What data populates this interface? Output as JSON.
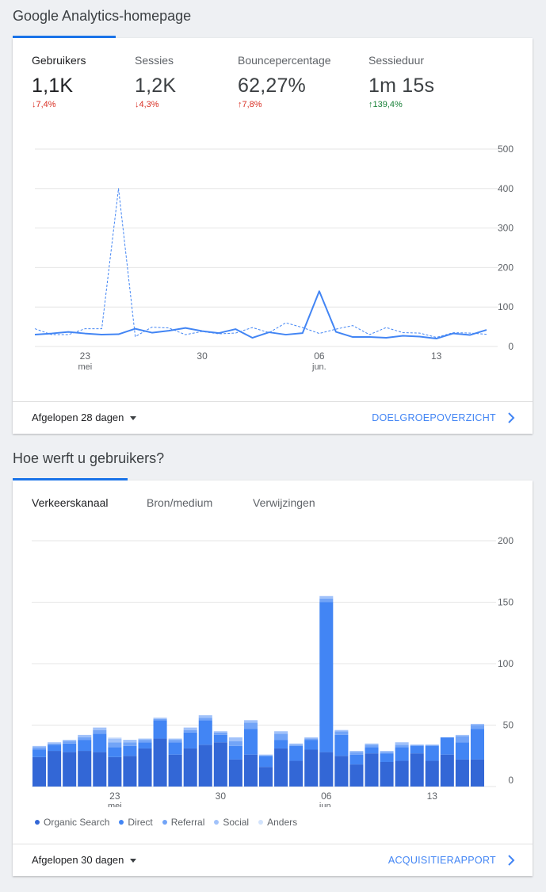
{
  "overview": {
    "title": "Google Analytics-homepage",
    "metrics": [
      {
        "label": "Gebruikers",
        "value": "1,1K",
        "delta": "7,4%",
        "direction": "down"
      },
      {
        "label": "Sessies",
        "value": "1,2K",
        "delta": "4,3%",
        "direction": "down"
      },
      {
        "label": "Bouncepercentage",
        "value": "62,27%",
        "delta": "7,8%",
        "direction": "up"
      },
      {
        "label": "Sessieduur",
        "value": "1m 15s",
        "delta": "139,4%",
        "direction": "up"
      }
    ],
    "footer": {
      "range": "Afgelopen 28 dagen",
      "link": "DOELGROEPOVERZICHT"
    }
  },
  "acquisition": {
    "title": "Hoe werft u gebruikers?",
    "tabs": [
      "Verkeerskanaal",
      "Bron/medium",
      "Verwijzingen"
    ],
    "legend": [
      {
        "name": "Organic Search",
        "color": "#3367d6"
      },
      {
        "name": "Direct",
        "color": "#4285f4"
      },
      {
        "name": "Referral",
        "color": "#72a4f7"
      },
      {
        "name": "Social",
        "color": "#a1c2fa"
      },
      {
        "name": "Anders",
        "color": "#d2e3fc"
      }
    ],
    "footer": {
      "range": "Afgelopen 30 dagen",
      "link": "ACQUISITIERAPPORT"
    }
  },
  "chart_data": [
    {
      "type": "line",
      "x": [
        "2021-05-20",
        "2021-05-21",
        "2021-05-22",
        "2021-05-23",
        "2021-05-24",
        "2021-05-25",
        "2021-05-26",
        "2021-05-27",
        "2021-05-28",
        "2021-05-29",
        "2021-05-30",
        "2021-05-31",
        "2021-06-01",
        "2021-06-02",
        "2021-06-03",
        "2021-06-04",
        "2021-06-05",
        "2021-06-06",
        "2021-06-07",
        "2021-06-08",
        "2021-06-09",
        "2021-06-10",
        "2021-06-11",
        "2021-06-12",
        "2021-06-13",
        "2021-06-14",
        "2021-06-15",
        "2021-06-16"
      ],
      "x_tick_labels": [
        {
          "date": "2021-05-23",
          "label": "23",
          "sub": "mei"
        },
        {
          "date": "2021-05-30",
          "label": "30",
          "sub": ""
        },
        {
          "date": "2021-06-06",
          "label": "06",
          "sub": "jun."
        },
        {
          "date": "2021-06-13",
          "label": "13",
          "sub": ""
        }
      ],
      "series": [
        {
          "values": [
            30,
            33,
            37,
            33,
            30,
            31,
            45,
            35,
            40,
            47,
            39,
            34,
            44,
            22,
            36,
            30,
            34,
            140,
            37,
            24,
            24,
            22,
            27,
            25,
            20,
            33,
            29,
            42
          ],
          "style": "solid"
        },
        {
          "values": [
            45,
            30,
            30,
            45,
            45,
            400,
            25,
            49,
            47,
            30,
            38,
            32,
            34,
            48,
            35,
            60,
            48,
            33,
            44,
            53,
            30,
            48,
            35,
            34,
            23,
            35,
            34,
            31
          ],
          "style": "dashed"
        }
      ],
      "y_ticks": [
        0,
        100,
        200,
        300,
        400,
        500
      ],
      "ylim": [
        0,
        500
      ]
    },
    {
      "type": "bar",
      "stacked": true,
      "x": [
        "2021-05-18",
        "2021-05-19",
        "2021-05-20",
        "2021-05-21",
        "2021-05-22",
        "2021-05-23",
        "2021-05-24",
        "2021-05-25",
        "2021-05-26",
        "2021-05-27",
        "2021-05-28",
        "2021-05-29",
        "2021-05-30",
        "2021-05-31",
        "2021-06-01",
        "2021-06-02",
        "2021-06-03",
        "2021-06-04",
        "2021-06-05",
        "2021-06-06",
        "2021-06-07",
        "2021-06-08",
        "2021-06-09",
        "2021-06-10",
        "2021-06-11",
        "2021-06-12",
        "2021-06-13",
        "2021-06-14",
        "2021-06-15",
        "2021-06-16"
      ],
      "x_tick_labels": [
        {
          "date": "2021-05-23",
          "label": "23",
          "sub": "mei"
        },
        {
          "date": "2021-05-30",
          "label": "30",
          "sub": ""
        },
        {
          "date": "2021-06-06",
          "label": "06",
          "sub": "jun."
        },
        {
          "date": "2021-06-13",
          "label": "13",
          "sub": ""
        }
      ],
      "series": [
        {
          "name": "Organic Search",
          "values": [
            24,
            29,
            28,
            29,
            28,
            24,
            25,
            31,
            39,
            26,
            31,
            34,
            36,
            22,
            26,
            16,
            31,
            21,
            30,
            28,
            25,
            18,
            27,
            20,
            21,
            27,
            21,
            26,
            22,
            22
          ]
        },
        {
          "name": "Direct",
          "values": [
            6,
            5,
            7,
            9,
            15,
            8,
            8,
            5,
            15,
            10,
            13,
            20,
            6,
            11,
            21,
            9,
            7,
            12,
            8,
            122,
            17,
            8,
            5,
            7,
            11,
            6,
            12,
            14,
            14,
            25
          ]
        },
        {
          "name": "Referral",
          "values": [
            2,
            1,
            2,
            2,
            3,
            4,
            3,
            2,
            1,
            2,
            2,
            2,
            2,
            4,
            5,
            0,
            5,
            1,
            1,
            3,
            3,
            2,
            2,
            1,
            2,
            1,
            1,
            0,
            5,
            3
          ]
        },
        {
          "name": "Social",
          "values": [
            1,
            1,
            1,
            2,
            2,
            3,
            2,
            1,
            1,
            1,
            2,
            2,
            1,
            3,
            2,
            1,
            2,
            1,
            1,
            2,
            1,
            1,
            1,
            1,
            2,
            0,
            0,
            0,
            1,
            1
          ]
        },
        {
          "name": "Anders",
          "values": [
            0,
            0,
            0,
            0,
            0,
            1,
            0,
            0,
            0,
            0,
            0,
            0,
            0,
            0,
            0,
            0,
            0,
            0,
            0,
            0,
            0,
            0,
            0,
            0,
            0,
            0,
            0,
            0,
            0,
            0
          ]
        }
      ],
      "y_ticks": [
        0,
        50,
        100,
        150,
        200
      ],
      "ylim": [
        0,
        200
      ]
    }
  ]
}
